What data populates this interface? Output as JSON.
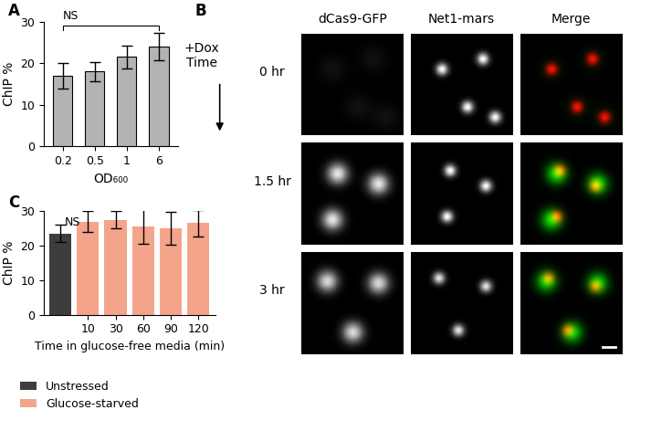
{
  "chart_data": [
    {
      "panel": "A",
      "type": "bar",
      "categories": [
        "0.2",
        "0.5",
        "1",
        "6"
      ],
      "values": [
        17,
        18,
        21.5,
        24
      ],
      "errors": [
        3,
        2.3,
        2.8,
        3.2
      ],
      "color": "#b3b3b3",
      "x_label": "OD₆₀₀",
      "y_label": "ChIP %",
      "ylim": [
        0,
        30
      ],
      "yticks": [
        0,
        10,
        20,
        30
      ],
      "annotation": "NS"
    },
    {
      "panel": "C",
      "type": "bar",
      "categories": [
        null,
        "10",
        "30",
        "60",
        "90",
        "120"
      ],
      "x_label": "Time in glucose-free media (min)",
      "y_label": "ChIP %",
      "ylim": [
        0,
        30
      ],
      "yticks": [
        0,
        10,
        20,
        30
      ],
      "annotation": "NS",
      "legend": "lower left",
      "series": [
        {
          "name": "Unstressed",
          "color": "#3d3d3d",
          "values": [
            23.5,
            null,
            null,
            null,
            null,
            null
          ],
          "errors": [
            2.5,
            null,
            null,
            null,
            null,
            null
          ]
        },
        {
          "name": "Glucose-starved",
          "color": "#f5a48c",
          "values": [
            null,
            27,
            27.5,
            25.5,
            25,
            26.5
          ],
          "errors": [
            null,
            3,
            2.5,
            5,
            4.8,
            3.8
          ]
        }
      ]
    }
  ],
  "image_grid": {
    "panel": "B",
    "side_label": "+Dox\nTime",
    "columns": [
      "dCas9-GFP",
      "Net1-mars",
      "Merge"
    ],
    "rows": [
      "0 hr",
      "1.5 hr",
      "3 hr"
    ]
  }
}
